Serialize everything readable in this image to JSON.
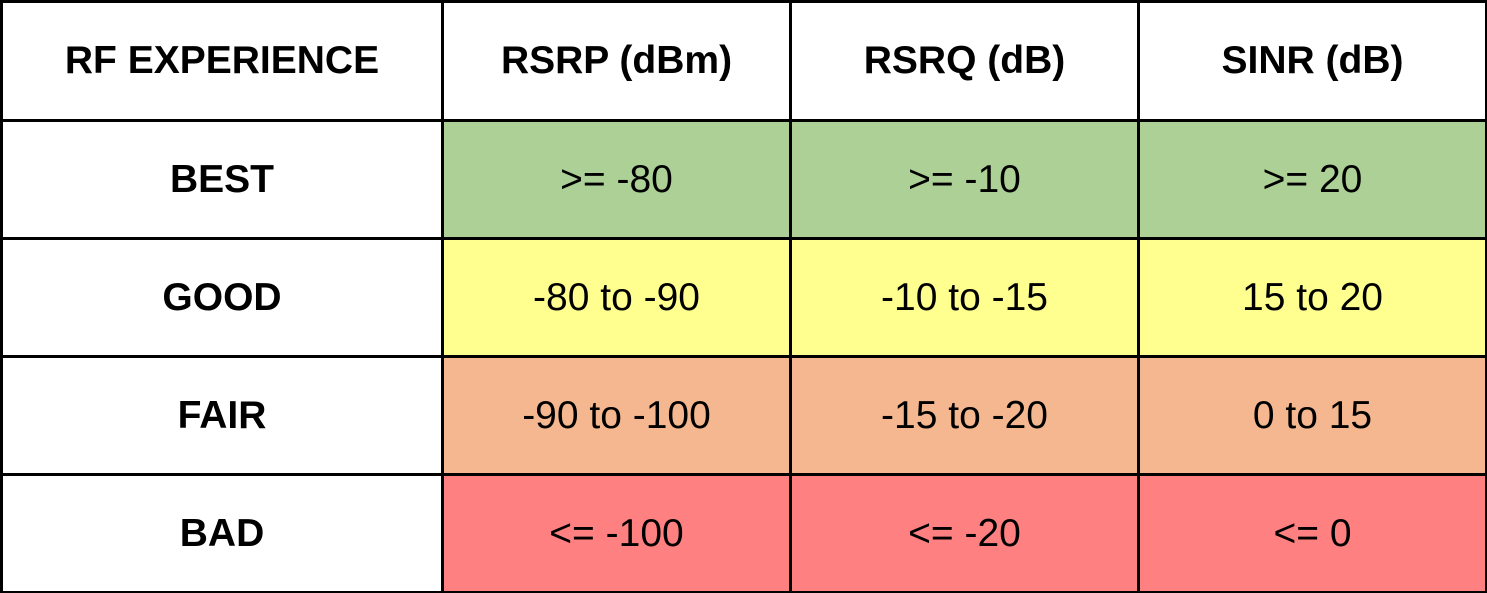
{
  "table": {
    "header": [
      "RF EXPERIENCE",
      "RSRP (dBm)",
      "RSRQ (dB)",
      "SINR (dB)"
    ],
    "rows": [
      [
        "BEST",
        ">= -80",
        ">= -10",
        ">= 20"
      ],
      [
        "GOOD",
        "-80 to -90",
        "-10 to -15",
        "15 to 20"
      ],
      [
        "FAIR",
        "-90 to -100",
        "-15 to -20",
        "0 to 15"
      ],
      [
        "BAD",
        "<= -100",
        "<= -20",
        "<= 0"
      ]
    ]
  }
}
